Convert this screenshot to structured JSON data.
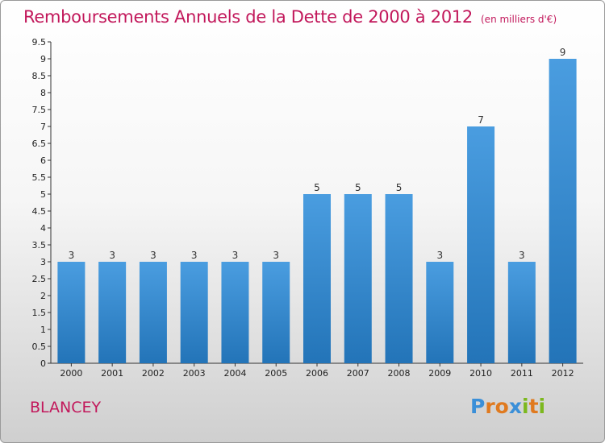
{
  "header": {
    "title": "Remboursements Annuels de la Dette de 2000 à 2012",
    "unit": "(en milliers d'€)"
  },
  "footer": {
    "commune": "BLANCEY",
    "logo_letters": [
      "P",
      "r",
      "o",
      "x",
      "i",
      "t",
      "i"
    ],
    "logo_colors": [
      "#3a8fd8",
      "#e07a1f",
      "#e07a1f",
      "#3a8fd8",
      "#7cb81e",
      "#e07a1f",
      "#7cb81e"
    ]
  },
  "chart_data": {
    "type": "bar",
    "title": "Remboursements Annuels de la Dette de 2000 à 2012",
    "xlabel": "",
    "ylabel": "",
    "categories": [
      "2000",
      "2001",
      "2002",
      "2003",
      "2004",
      "2005",
      "2006",
      "2007",
      "2008",
      "2009",
      "2010",
      "2011",
      "2012"
    ],
    "values": [
      3,
      3,
      3,
      3,
      3,
      3,
      5,
      5,
      5,
      3,
      7,
      3,
      9
    ],
    "data_labels": [
      "3",
      "3",
      "3",
      "3",
      "3",
      "3",
      "5",
      "5",
      "5",
      "3",
      "7",
      "3",
      "9"
    ],
    "ylim": [
      0,
      9.5
    ],
    "yticks": [
      0,
      0.5,
      1,
      1.5,
      2,
      2.5,
      3,
      3.5,
      4,
      4.5,
      5,
      5.5,
      6,
      6.5,
      7,
      7.5,
      8,
      8.5,
      9,
      9.5
    ],
    "ytick_labels": [
      "0",
      "0.5",
      "1",
      "1.5",
      "2",
      "2.5",
      "3",
      "3.5",
      "4",
      "4.5",
      "5",
      "5.5",
      "6",
      "6.5",
      "7",
      "7.5",
      "8",
      "8.5",
      "9",
      "9.5"
    ],
    "grid": false,
    "bar_color": "#4a9de0",
    "bar_color_dark": "#2374b8"
  }
}
